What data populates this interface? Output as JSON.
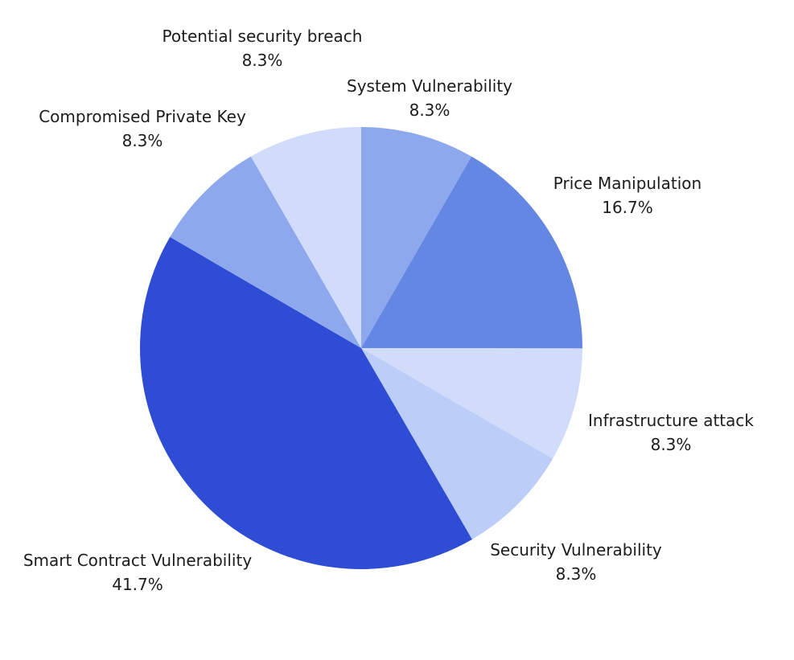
{
  "chart_data": {
    "type": "pie",
    "title": "",
    "slices": [
      {
        "label": "System Vulnerability",
        "value": 8.3,
        "value_label": "8.3%",
        "color": "#8ea8ee"
      },
      {
        "label": "Price Manipulation",
        "value": 16.7,
        "value_label": "16.7%",
        "color": "#6587e4"
      },
      {
        "label": "Infrastructure attack",
        "value": 8.3,
        "value_label": "8.3%",
        "color": "#d0dcf9"
      },
      {
        "label": "Security Vulnerability",
        "value": 8.3,
        "value_label": "8.3%",
        "color": "#bccdf7"
      },
      {
        "label": "Smart Contract Vulnerability",
        "value": 41.7,
        "value_label": "41.7%",
        "color": "#2e4dd4"
      },
      {
        "label": "Compromised Private Key",
        "value": 8.3,
        "value_label": "8.3%",
        "color": "#8ea8ee"
      },
      {
        "label": "Potential security breach",
        "value": 8.3,
        "value_label": "8.3%",
        "color": "#d0dcf9"
      }
    ],
    "start_angle": "12 o'clock",
    "direction": "clockwise",
    "legend": "none"
  }
}
